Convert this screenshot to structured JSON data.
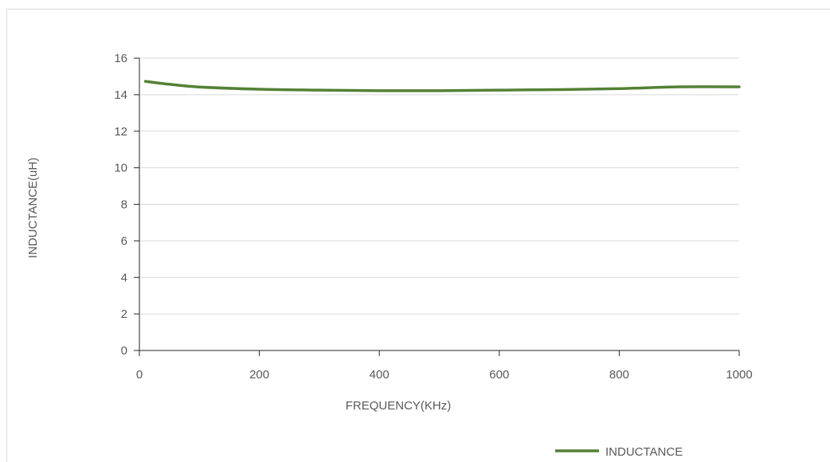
{
  "chart_data": {
    "type": "line",
    "title": "",
    "xlabel": "FREQUENCY(KHz)",
    "ylabel": "INDUCTANCE(uH)",
    "xlim": [
      0,
      1000
    ],
    "ylim": [
      0,
      16
    ],
    "x_ticks": [
      0,
      200,
      400,
      600,
      800,
      1000
    ],
    "y_ticks": [
      0,
      2,
      4,
      6,
      8,
      10,
      12,
      14,
      16
    ],
    "grid": "horizontal",
    "legend_position": "bottom-right",
    "series": [
      {
        "name": "INDUCTANCE",
        "color": "#538135",
        "x": [
          10,
          50,
          100,
          200,
          300,
          400,
          500,
          600,
          700,
          800,
          900,
          1000
        ],
        "y": [
          14.73,
          14.57,
          14.42,
          14.3,
          14.25,
          14.22,
          14.22,
          14.25,
          14.28,
          14.33,
          14.43,
          14.43
        ]
      }
    ]
  }
}
